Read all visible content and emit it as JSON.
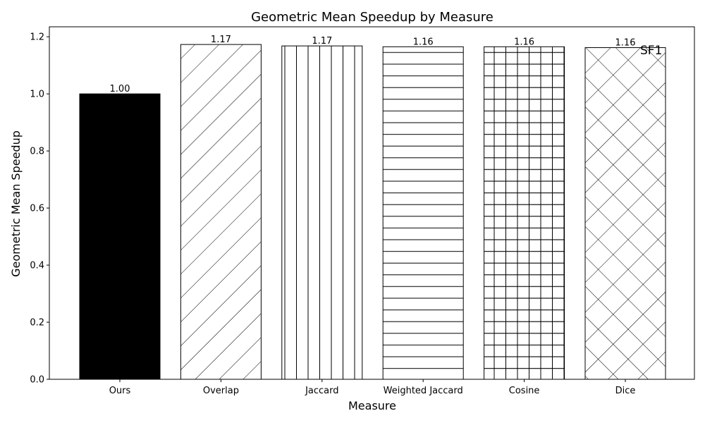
{
  "chart_data": {
    "type": "bar",
    "title": "Geometric Mean Speedup by Measure",
    "xlabel": "Measure",
    "ylabel": "Geometric Mean Speedup",
    "categories": [
      "Ours",
      "Overlap",
      "Jaccard",
      "Weighted Jaccard",
      "Cosine",
      "Dice"
    ],
    "values": [
      1.0,
      1.173,
      1.168,
      1.165,
      1.165,
      1.162
    ],
    "value_labels": [
      "1.00",
      "1.17",
      "1.17",
      "1.16",
      "1.16",
      "1.16"
    ],
    "hatches": [
      "solid",
      "diagonal",
      "vertical",
      "horizontal",
      "grid",
      "crosshatch"
    ],
    "ylim": [
      0,
      1.235
    ],
    "yticks": [
      0.0,
      0.2,
      0.4,
      0.6,
      0.8,
      1.0,
      1.2
    ],
    "ytick_labels": [
      "0.0",
      "0.2",
      "0.4",
      "0.6",
      "0.8",
      "1.0",
      "1.2"
    ],
    "annotation": "SF1",
    "grid": false,
    "colors": {
      "bar_fill": "#ffffff",
      "bar_solid": "#000000",
      "edge": "#000000"
    }
  }
}
